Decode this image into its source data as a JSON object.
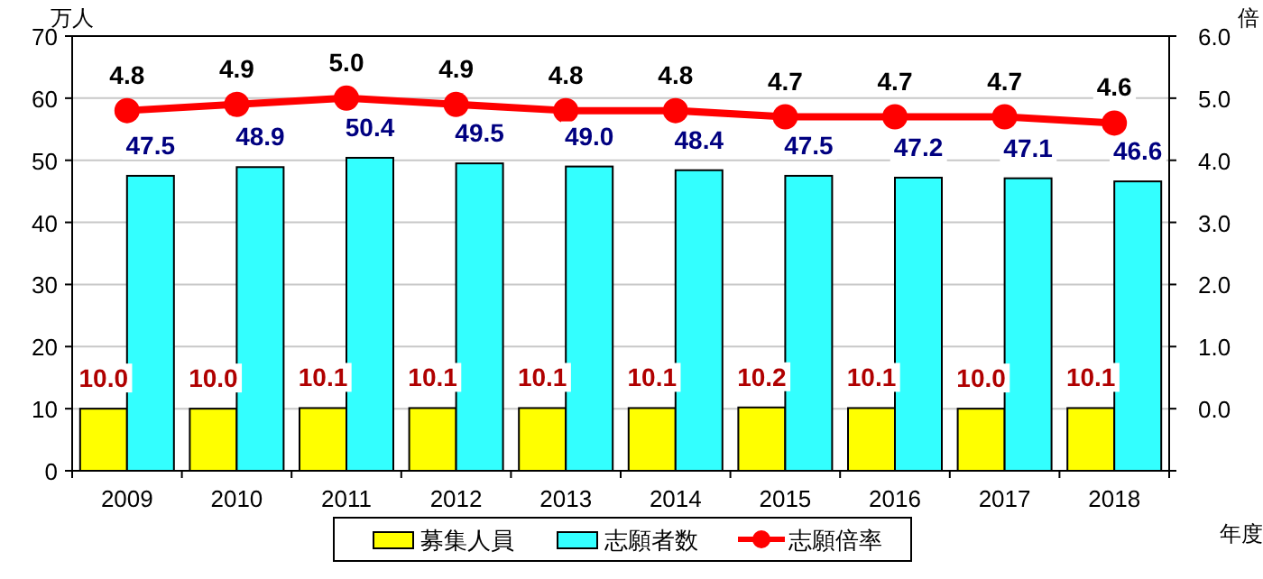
{
  "chart_data": {
    "type": "bar",
    "ylabel": "万人",
    "y2label": "倍",
    "xlabel": "年度",
    "categories": [
      "2009",
      "2010",
      "2011",
      "2012",
      "2013",
      "2014",
      "2015",
      "2016",
      "2017",
      "2018"
    ],
    "series": [
      {
        "name": "募集人員",
        "color": "#ffff00",
        "values": [
          10.0,
          10.0,
          10.1,
          10.1,
          10.1,
          10.1,
          10.2,
          10.1,
          10.0,
          10.1
        ],
        "value_labels": [
          "10.0",
          "10.0",
          "10.1",
          "10.1",
          "10.1",
          "10.1",
          "10.2",
          "10.1",
          "10.0",
          "10.1"
        ]
      },
      {
        "name": "志願者数",
        "color": "#33ffff",
        "values": [
          47.5,
          48.9,
          50.4,
          49.5,
          49.0,
          48.4,
          47.5,
          47.2,
          47.1,
          46.6
        ],
        "value_labels": [
          "47.5",
          "48.9",
          "50.4",
          "49.5",
          "49.0",
          "48.4",
          "47.5",
          "47.2",
          "47.1",
          "46.6"
        ]
      },
      {
        "name": "志願倍率",
        "color": "#ff0000",
        "type": "line",
        "axis": "y2",
        "marker": "circle",
        "values": [
          4.8,
          4.9,
          5.0,
          4.9,
          4.8,
          4.8,
          4.7,
          4.7,
          4.7,
          4.6
        ],
        "value_labels": [
          "4.8",
          "4.9",
          "5.0",
          "4.9",
          "4.8",
          "4.8",
          "4.7",
          "4.7",
          "4.7",
          "4.6"
        ]
      }
    ],
    "ylim": [
      0,
      70
    ],
    "yticks": [
      0,
      10,
      20,
      30,
      40,
      50,
      60,
      70
    ],
    "y2lim": [
      -1,
      6
    ],
    "y2ticks": [
      {
        "value": -1,
        "label": null
      },
      {
        "value": 0,
        "label": "0.0"
      },
      {
        "value": 1,
        "label": "1.0"
      },
      {
        "value": 2,
        "label": "2.0"
      },
      {
        "value": 3,
        "label": "3.0"
      },
      {
        "value": 4,
        "label": "4.0"
      },
      {
        "value": 5,
        "label": "5.0"
      },
      {
        "value": 6,
        "label": "6.0"
      }
    ],
    "grid": "y",
    "legend": "bottom"
  }
}
